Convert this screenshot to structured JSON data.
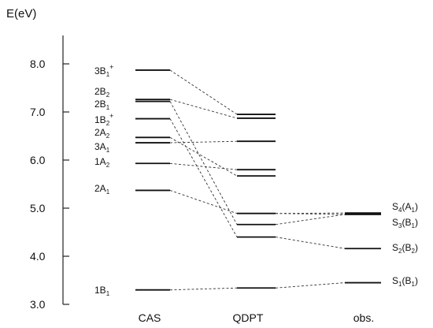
{
  "axis": {
    "title": "E(eV)",
    "ticks": [
      3.0,
      4.0,
      5.0,
      6.0,
      7.0,
      8.0
    ],
    "tick_labels": [
      "3.0",
      "4.0",
      "5.0",
      "6.0",
      "7.0",
      "8.0"
    ],
    "range": [
      3.0,
      8.5
    ]
  },
  "columns": [
    {
      "key": "cas",
      "label": "CAS"
    },
    {
      "key": "qdpt",
      "label": "QDPT"
    },
    {
      "key": "obs",
      "label": "obs."
    }
  ],
  "cas_levels": [
    {
      "id": "1B1",
      "energy": 3.3,
      "label_main": "1B",
      "label_sub": "1",
      "label_sup": ""
    },
    {
      "id": "2A1",
      "energy": 5.37,
      "label_main": "2A",
      "label_sub": "1",
      "label_sup": ""
    },
    {
      "id": "1A2",
      "energy": 5.93,
      "label_main": "1A",
      "label_sub": "2",
      "label_sup": ""
    },
    {
      "id": "3A1",
      "energy": 6.36,
      "label_main": "3A",
      "label_sub": "1",
      "label_sup": ""
    },
    {
      "id": "2A2",
      "energy": 6.47,
      "label_main": "2A",
      "label_sub": "2",
      "label_sup": ""
    },
    {
      "id": "1B2",
      "energy": 6.86,
      "label_main": "1B",
      "label_sub": "2",
      "label_sup": "+"
    },
    {
      "id": "2B1",
      "energy": 7.22,
      "label_main": "2B",
      "label_sub": "1",
      "label_sup": ""
    },
    {
      "id": "2B2",
      "energy": 7.26,
      "label_main": "2B",
      "label_sub": "2",
      "label_sup": ""
    },
    {
      "id": "3B1",
      "energy": 7.87,
      "label_main": "3B",
      "label_sub": "1",
      "label_sup": "+"
    }
  ],
  "qdpt_levels": [
    {
      "id": "q1",
      "energy": 3.34
    },
    {
      "id": "q2",
      "energy": 4.4
    },
    {
      "id": "q3",
      "energy": 4.66
    },
    {
      "id": "q4",
      "energy": 4.89
    },
    {
      "id": "q5",
      "energy": 5.67
    },
    {
      "id": "q6",
      "energy": 5.8
    },
    {
      "id": "q7",
      "energy": 6.39
    },
    {
      "id": "q8",
      "energy": 6.87
    },
    {
      "id": "q9",
      "energy": 6.95
    }
  ],
  "obs_levels": [
    {
      "id": "S1",
      "energy": 3.45,
      "label_main": "S",
      "label_sub": "1",
      "label_paren_main": "B",
      "label_paren_sub": "1"
    },
    {
      "id": "S2",
      "energy": 4.16,
      "label_main": "S",
      "label_sub": "2",
      "label_paren_main": "B",
      "label_paren_sub": "2"
    },
    {
      "id": "S3",
      "energy": 4.87,
      "label_main": "S",
      "label_sub": "3",
      "label_paren_main": "B",
      "label_paren_sub": "1"
    },
    {
      "id": "S4",
      "energy": 4.9,
      "label_main": "S",
      "label_sub": "4",
      "label_paren_main": "A",
      "label_paren_sub": "1"
    }
  ],
  "connections_cas_qdpt": [
    [
      "1B1",
      "q1"
    ],
    [
      "2A1",
      "q4"
    ],
    [
      "1A2",
      "q6"
    ],
    [
      "3A1",
      "q7"
    ],
    [
      "2A2",
      "q5"
    ],
    [
      "1B2",
      "q2"
    ],
    [
      "2B1",
      "q3"
    ],
    [
      "2B2",
      "q8"
    ],
    [
      "3B1",
      "q9"
    ]
  ],
  "connections_qdpt_obs": [
    [
      "q1",
      "S1"
    ],
    [
      "q2",
      "S2"
    ],
    [
      "q3",
      "S3"
    ],
    [
      "q4",
      "S4"
    ],
    [
      "q4",
      "S3"
    ]
  ]
}
